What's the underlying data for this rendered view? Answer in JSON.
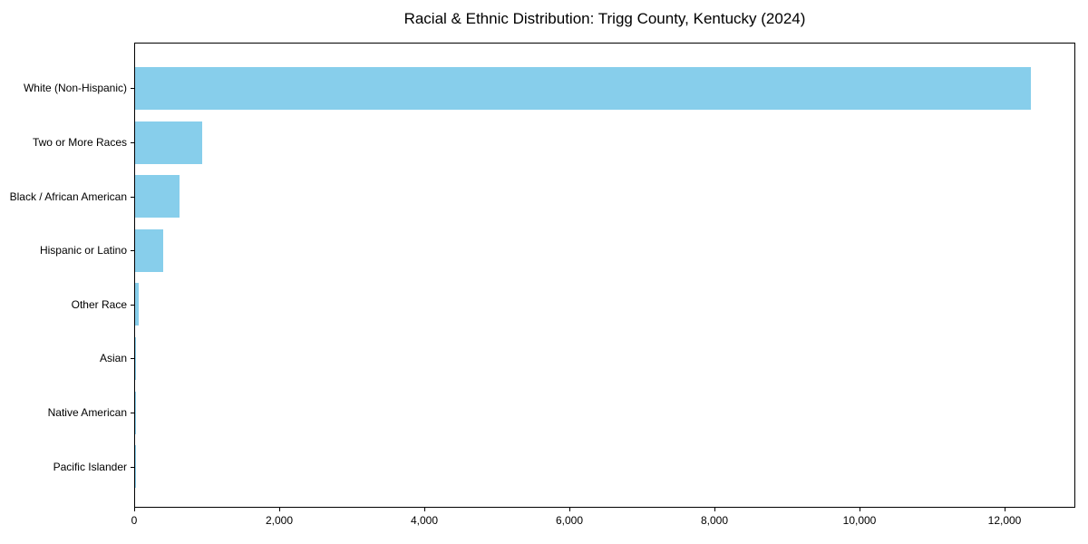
{
  "title": "Racial & Ethnic Distribution: Trigg County, Kentucky (2024)",
  "chart_data": {
    "type": "bar",
    "orientation": "horizontal",
    "title": "Racial & Ethnic Distribution: Trigg County, Kentucky (2024)",
    "categories": [
      "White (Non-Hispanic)",
      "Two or More Races",
      "Black / African American",
      "Hispanic or Latino",
      "Other Race",
      "Asian",
      "Native American",
      "Pacific Islander"
    ],
    "values": [
      12350,
      920,
      612,
      388,
      48,
      15,
      8,
      3
    ],
    "bar_color": "#87CEEB",
    "xlabel": "",
    "ylabel": "",
    "xlim": [
      0,
      12970
    ],
    "xticks": [
      0,
      2000,
      4000,
      6000,
      8000,
      10000,
      12000
    ],
    "xtick_labels": [
      "0",
      "2,000",
      "4,000",
      "6,000",
      "8,000",
      "10,000",
      "12,000"
    ],
    "grid": false,
    "legend": "none",
    "background_color": "#ffffff",
    "axis_color": "#000000"
  }
}
